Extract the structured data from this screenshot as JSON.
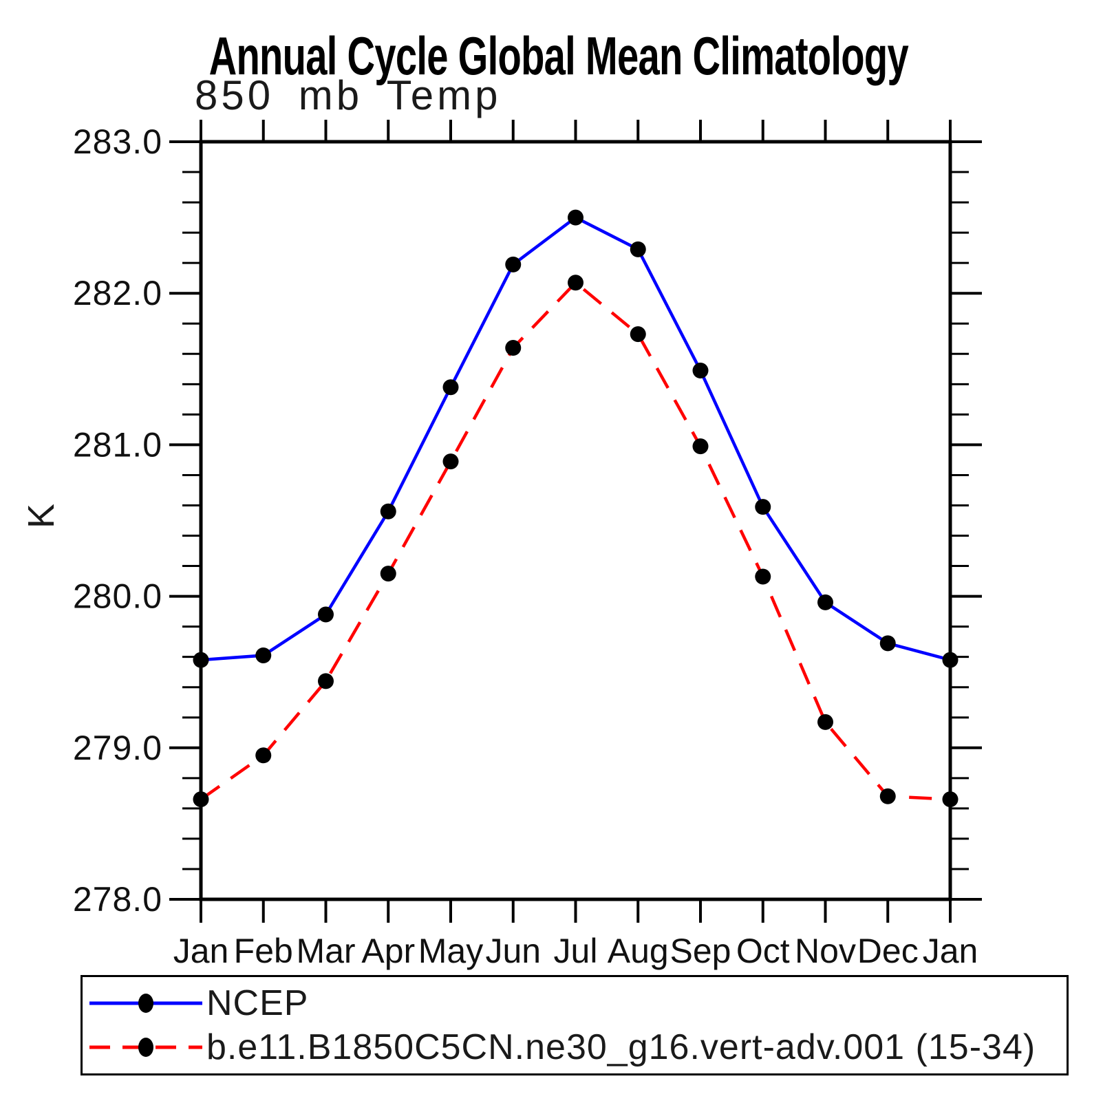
{
  "chart_data": {
    "type": "line",
    "title": "Annual Cycle Global Mean Climatology",
    "subtitle": "850 mb Temp",
    "ylabel": "K",
    "categories": [
      "Jan",
      "Feb",
      "Mar",
      "Apr",
      "May",
      "Jun",
      "Jul",
      "Aug",
      "Sep",
      "Oct",
      "Nov",
      "Dec",
      "Jan"
    ],
    "ylim": [
      278.0,
      283.0
    ],
    "yticks": [
      278.0,
      279.0,
      280.0,
      281.0,
      282.0,
      283.0
    ],
    "ytick_labels": [
      "278.0",
      "279.0",
      "280.0",
      "281.0",
      "282.0",
      "283.0"
    ],
    "minor_tick_step": 0.2,
    "grid": false,
    "legend_position": "bottom-box",
    "series": [
      {
        "name": "NCEP",
        "color": "#0000ff",
        "style": "solid",
        "marker": "filled-circle",
        "marker_color": "#000000",
        "values": [
          279.58,
          279.61,
          279.88,
          280.56,
          281.38,
          282.19,
          282.5,
          282.29,
          281.49,
          280.59,
          279.96,
          279.69,
          279.58
        ]
      },
      {
        "name": "b.e11.B1850C5CN.ne30_g16.vert-adv.001 (15-34)",
        "color": "#ff0000",
        "style": "dashed",
        "marker": "filled-circle",
        "marker_color": "#000000",
        "values": [
          278.66,
          278.95,
          279.44,
          280.15,
          280.89,
          281.64,
          282.07,
          281.73,
          280.99,
          280.13,
          279.17,
          278.68,
          278.66
        ]
      }
    ]
  }
}
